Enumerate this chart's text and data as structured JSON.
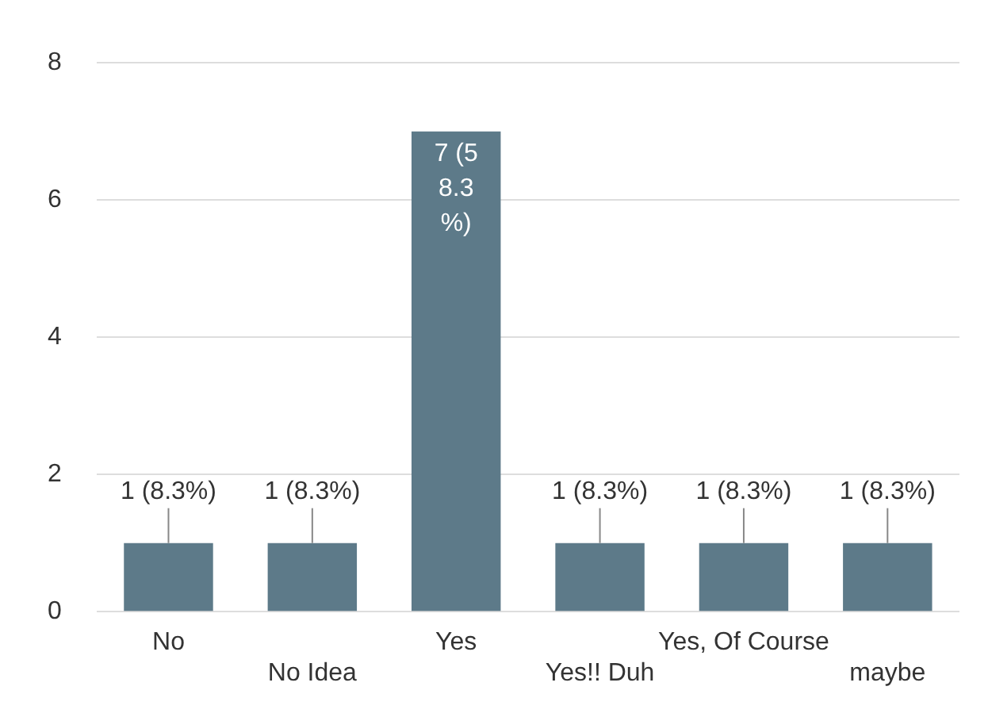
{
  "chart_data": {
    "type": "bar",
    "categories": [
      "No",
      "No Idea",
      "Yes",
      "Yes!! Duh",
      "Yes, Of Course",
      "maybe"
    ],
    "values": [
      1,
      1,
      7,
      1,
      1,
      1
    ],
    "color": "#5d7a89",
    "value_labels": [
      "1 (8.3%)",
      "1 (8.3%)",
      "7 (58.3%)",
      "1 (8.3%)",
      "1 (8.3%)",
      "1 (8.3%)"
    ],
    "ylim": [
      0,
      8
    ],
    "yticks": [
      0,
      2,
      4,
      6,
      8
    ],
    "grid": "y",
    "legend": false
  }
}
